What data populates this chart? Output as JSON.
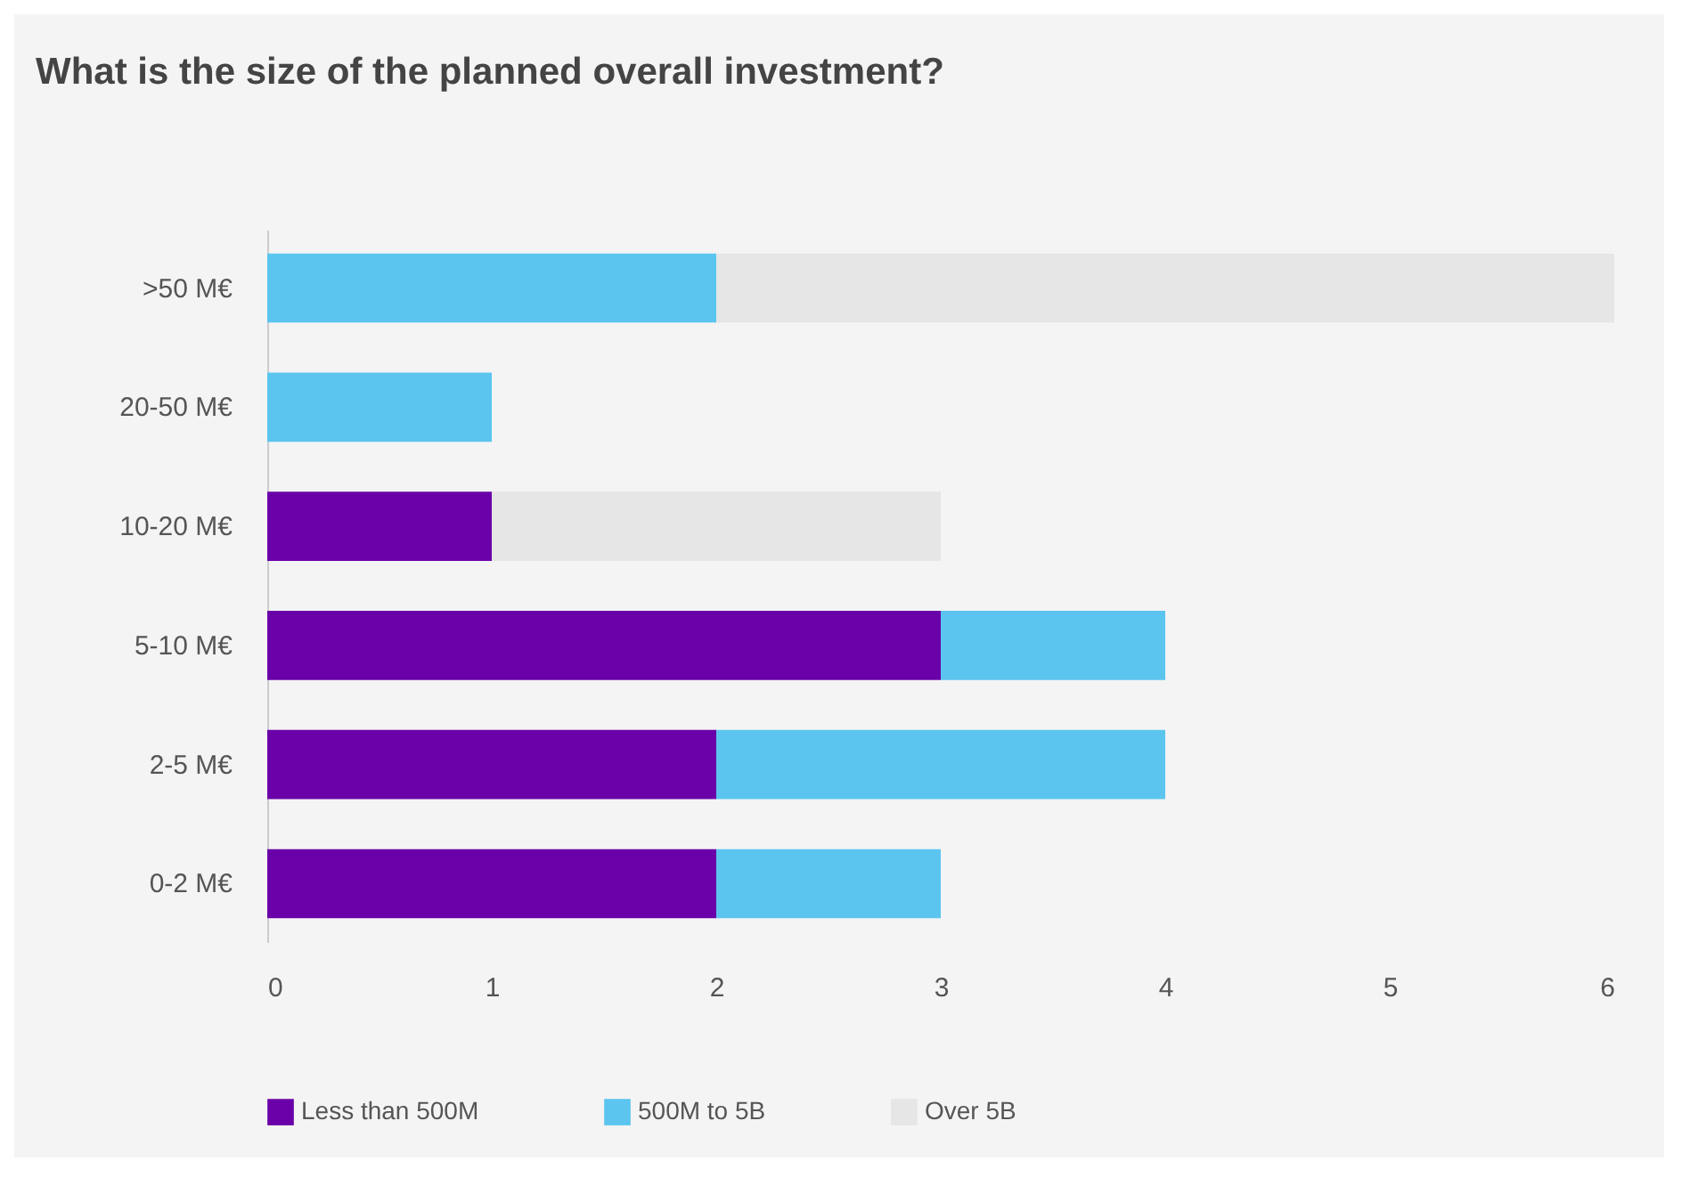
{
  "chart_data": {
    "type": "bar",
    "orientation": "horizontal",
    "stacked": true,
    "title": "What is the size of the planned overall investment?",
    "categories": [
      ">50 M€",
      "20-50 M€",
      "10-20 M€",
      "5-10 M€",
      "2-5 M€",
      "0-2 M€"
    ],
    "series": [
      {
        "name": "Less than 500M",
        "color": "#6a00a8",
        "values": [
          0,
          0,
          1,
          3,
          2,
          2
        ]
      },
      {
        "name": "500M to 5B",
        "color": "#5bc5ef",
        "values": [
          2,
          1,
          0,
          1,
          2,
          1
        ]
      },
      {
        "name": "Over 5B",
        "color": "#e6e6e6",
        "values": [
          4,
          0,
          2,
          0,
          0,
          0
        ]
      }
    ],
    "xlim": [
      0,
      6
    ],
    "xticks": [
      0,
      1,
      2,
      3,
      4,
      5,
      6
    ],
    "grid": false,
    "legend": "bottom"
  }
}
